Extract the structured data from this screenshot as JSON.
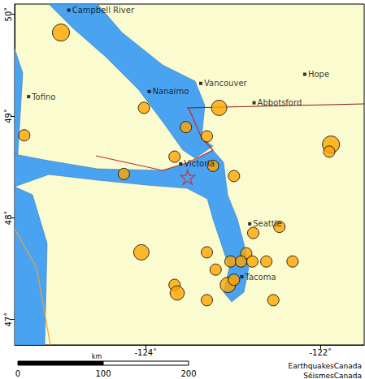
{
  "chart_data": {
    "type": "scatter",
    "xlim": [
      -125.5,
      -121.5
    ],
    "ylim": [
      46.75,
      50.1
    ],
    "xticks": [
      {
        "value": -124,
        "label": "-124˚"
      },
      {
        "value": -122,
        "label": "-122˚"
      }
    ],
    "yticks": [
      {
        "value": 47,
        "label": "47˚"
      },
      {
        "value": 48,
        "label": "48˚"
      },
      {
        "value": 49,
        "label": "49˚"
      },
      {
        "value": 50,
        "label": "50˚"
      }
    ],
    "grid": false,
    "series": [
      {
        "color": "#ffa500",
        "marker": "circle",
        "x": [
          -124.97,
          -125.39,
          -124.02,
          -123.16,
          -123.54,
          -123.3,
          -123.67,
          -123.23,
          -124.25,
          -122.99,
          -121.88,
          -121.9,
          -122.47,
          -122.77,
          -124.05,
          -123.3,
          -122.85,
          -123.03,
          -122.91,
          -122.78,
          -122.62,
          -122.32,
          -123.2,
          -123.06,
          -122.99,
          -123.67,
          -123.64,
          -123.3,
          -122.54
        ],
        "values": [
          49.82,
          48.81,
          49.08,
          49.08,
          48.89,
          48.8,
          48.6,
          48.51,
          48.43,
          48.41,
          48.72,
          48.65,
          47.91,
          47.85,
          47.66,
          47.66,
          47.65,
          47.57,
          47.57,
          47.57,
          47.57,
          47.57,
          47.49,
          47.34,
          47.39,
          47.34,
          47.26,
          47.19,
          47.19
        ],
        "magnitude": [
          4.0,
          3.0,
          3.0,
          3.7,
          3.0,
          3.0,
          3.0,
          3.0,
          3.0,
          3.0,
          4.0,
          3.0,
          3.0,
          3.0,
          3.7,
          3.0,
          3.0,
          3.0,
          3.0,
          3.0,
          3.0,
          3.0,
          3.0,
          3.7,
          3.0,
          3.0,
          3.5,
          3.0,
          3.0
        ]
      }
    ],
    "epicentre": {
      "x": -123.52,
      "y": 48.4,
      "color": "#e41a1c",
      "marker": "star"
    },
    "cities": [
      {
        "name": "Campbell River",
        "x": -124.88,
        "y": 50.04
      },
      {
        "name": "Tofino",
        "x": -125.34,
        "y": 49.19
      },
      {
        "name": "Nanaimo",
        "x": -123.96,
        "y": 49.24
      },
      {
        "name": "Vancouver",
        "x": -123.37,
        "y": 49.32
      },
      {
        "name": "Abbotsford",
        "x": -122.76,
        "y": 49.13
      },
      {
        "name": "Hope",
        "x": -122.18,
        "y": 49.41
      },
      {
        "name": "Victoria",
        "x": -123.6,
        "y": 48.53
      },
      {
        "name": "Seattle",
        "x": -122.81,
        "y": 47.94
      },
      {
        "name": "Tacoma",
        "x": -122.9,
        "y": 47.42
      }
    ],
    "scale_bar": {
      "label": "km",
      "ticks": [
        0,
        100,
        200
      ]
    },
    "credits": [
      "EarthquakesCanada",
      "SéismesCanada"
    ]
  }
}
